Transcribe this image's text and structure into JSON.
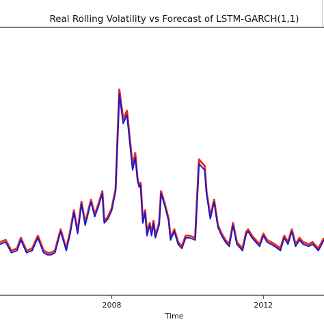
{
  "chart_data": {
    "type": "line",
    "title": "Real Rolling Volatility vs Forecast of LSTM-GARCH(1,1)",
    "xlabel": "Time",
    "ylabel": "",
    "xlim": [
      2005.05,
      2013.6
    ],
    "ylim": [
      0,
      1
    ],
    "x_ticks": [
      2008,
      2012
    ],
    "x_tick_labels": [
      "2008",
      "2012"
    ],
    "grid": false,
    "legend": "none",
    "series": [
      {
        "color": "#e8301e",
        "x": [
          2005.05,
          2005.2,
          2005.35,
          2005.5,
          2005.6,
          2005.75,
          2005.9,
          2006.05,
          2006.2,
          2006.3,
          2006.4,
          2006.5,
          2006.65,
          2006.8,
          2006.9,
          2007.0,
          2007.1,
          2007.2,
          2007.3,
          2007.45,
          2007.55,
          2007.65,
          2007.75,
          2007.8,
          2007.9,
          2008.0,
          2008.1,
          2008.2,
          2008.3,
          2008.4,
          2008.55,
          2008.62,
          2008.68,
          2008.72,
          2008.76,
          2008.82,
          2008.88,
          2008.93,
          2009.0,
          2009.05,
          2009.1,
          2009.15,
          2009.25,
          2009.3,
          2009.4,
          2009.5,
          2009.55,
          2009.65,
          2009.75,
          2009.85,
          2009.95,
          2010.05,
          2010.2,
          2010.3,
          2010.45,
          2010.5,
          2010.6,
          2010.7,
          2010.8,
          2010.9,
          2011.0,
          2011.1,
          2011.2,
          2011.3,
          2011.45,
          2011.5,
          2011.55,
          2011.6,
          2011.7,
          2011.8,
          2011.9,
          2012.0,
          2012.1,
          2012.2,
          2012.3,
          2012.45,
          2012.55,
          2012.65,
          2012.75,
          2012.85,
          2012.95,
          2013.05,
          2013.2,
          2013.3,
          2013.45,
          2013.6
        ],
        "y": [
          0.18,
          0.19,
          0.14,
          0.15,
          0.2,
          0.14,
          0.15,
          0.21,
          0.14,
          0.13,
          0.13,
          0.14,
          0.24,
          0.15,
          0.23,
          0.33,
          0.23,
          0.37,
          0.27,
          0.38,
          0.31,
          0.36,
          0.42,
          0.28,
          0.3,
          0.34,
          0.43,
          0.9,
          0.76,
          0.8,
          0.54,
          0.6,
          0.48,
          0.45,
          0.46,
          0.28,
          0.33,
          0.22,
          0.27,
          0.22,
          0.28,
          0.21,
          0.27,
          0.42,
          0.36,
          0.29,
          0.2,
          0.24,
          0.18,
          0.16,
          0.21,
          0.21,
          0.2,
          0.57,
          0.54,
          0.42,
          0.3,
          0.38,
          0.26,
          0.22,
          0.19,
          0.17,
          0.27,
          0.18,
          0.15,
          0.19,
          0.23,
          0.24,
          0.21,
          0.19,
          0.17,
          0.22,
          0.19,
          0.18,
          0.17,
          0.15,
          0.21,
          0.18,
          0.24,
          0.17,
          0.2,
          0.18,
          0.17,
          0.18,
          0.15,
          0.2
        ]
      },
      {
        "color": "#1a1acc",
        "x": [
          2005.05,
          2005.2,
          2005.35,
          2005.5,
          2005.6,
          2005.75,
          2005.9,
          2006.05,
          2006.2,
          2006.3,
          2006.4,
          2006.5,
          2006.65,
          2006.8,
          2006.9,
          2007.0,
          2007.1,
          2007.2,
          2007.3,
          2007.45,
          2007.55,
          2007.65,
          2007.75,
          2007.8,
          2007.9,
          2008.0,
          2008.1,
          2008.2,
          2008.3,
          2008.4,
          2008.55,
          2008.62,
          2008.68,
          2008.72,
          2008.76,
          2008.82,
          2008.88,
          2008.93,
          2009.0,
          2009.05,
          2009.1,
          2009.15,
          2009.25,
          2009.3,
          2009.4,
          2009.5,
          2009.55,
          2009.65,
          2009.75,
          2009.85,
          2009.95,
          2010.05,
          2010.2,
          2010.3,
          2010.45,
          2010.5,
          2010.6,
          2010.7,
          2010.8,
          2010.9,
          2011.0,
          2011.1,
          2011.2,
          2011.3,
          2011.45,
          2011.5,
          2011.55,
          2011.6,
          2011.7,
          2011.8,
          2011.9,
          2012.0,
          2012.1,
          2012.2,
          2012.3,
          2012.45,
          2012.55,
          2012.65,
          2012.75,
          2012.85,
          2012.95,
          2013.05,
          2013.2,
          2013.3,
          2013.45,
          2013.6
        ],
        "y": [
          0.17,
          0.18,
          0.13,
          0.14,
          0.19,
          0.13,
          0.14,
          0.2,
          0.13,
          0.12,
          0.12,
          0.13,
          0.23,
          0.14,
          0.22,
          0.32,
          0.22,
          0.36,
          0.26,
          0.37,
          0.3,
          0.35,
          0.41,
          0.27,
          0.29,
          0.33,
          0.42,
          0.88,
          0.74,
          0.78,
          0.52,
          0.58,
          0.47,
          0.44,
          0.45,
          0.27,
          0.32,
          0.21,
          0.26,
          0.21,
          0.27,
          0.2,
          0.26,
          0.41,
          0.35,
          0.28,
          0.19,
          0.23,
          0.17,
          0.15,
          0.2,
          0.2,
          0.19,
          0.55,
          0.52,
          0.41,
          0.29,
          0.37,
          0.25,
          0.21,
          0.18,
          0.16,
          0.26,
          0.17,
          0.14,
          0.18,
          0.22,
          0.23,
          0.2,
          0.18,
          0.16,
          0.21,
          0.18,
          0.17,
          0.16,
          0.14,
          0.2,
          0.17,
          0.23,
          0.16,
          0.19,
          0.17,
          0.16,
          0.17,
          0.14,
          0.19
        ]
      }
    ]
  }
}
